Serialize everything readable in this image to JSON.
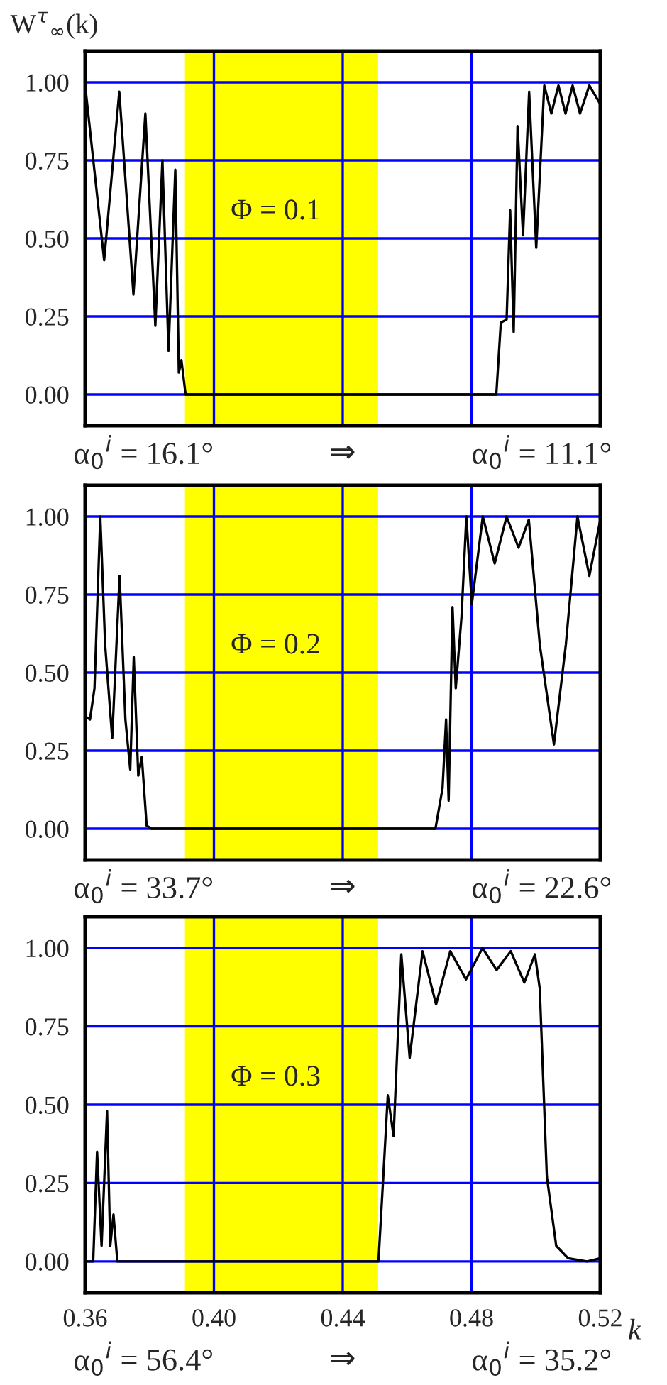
{
  "chart_data": [
    {
      "type": "line",
      "ylabel": "W$^{τ}$$_{∞}$(k)",
      "xlim": [
        0.36,
        0.52
      ],
      "xticks": [
        0.36,
        0.4,
        0.44,
        0.48,
        0.52
      ],
      "ylim": [
        -0.1,
        1.1
      ],
      "yticks": [
        {
          "value": 0,
          "label": "0.00"
        },
        {
          "value": 0.25,
          "label": "0.25"
        },
        {
          "value": 0.5,
          "label": "0.50"
        },
        {
          "value": 0.75,
          "label": "0.75"
        },
        {
          "value": 1,
          "label": "1.00"
        }
      ],
      "grid": true,
      "tick_labels": "y",
      "bands": [
        {
          "axis": "x",
          "from": 0.391,
          "to": 0.451,
          "color": "#ffff00"
        }
      ],
      "annotations": [
        "Φ = 0.1",
        "α$_{0}$$^{i}$ = 16.1°",
        "⇒",
        "α$_{0}$$^{i}$ = 11.1°"
      ],
      "x": [
        0.36,
        0.3659,
        0.3706,
        0.375,
        0.3787,
        0.3818,
        0.384,
        0.3859,
        0.388,
        0.3891,
        0.3899,
        0.3912,
        0.4877,
        0.4891,
        0.4909,
        0.492,
        0.4931,
        0.4943,
        0.496,
        0.4979,
        0.5001,
        0.5026,
        0.5048,
        0.507,
        0.5092,
        0.5114,
        0.5137,
        0.5166,
        0.52
      ],
      "series": [
        {
          "color": "#000000",
          "values": [
            0.99,
            0.43,
            0.97,
            0.32,
            0.9,
            0.22,
            0.75,
            0.14,
            0.72,
            0.07,
            0.11,
            0,
            0,
            0.23,
            0.24,
            0.59,
            0.2,
            0.86,
            0.51,
            0.97,
            0.47,
            0.99,
            0.9,
            0.99,
            0.9,
            0.99,
            0.9,
            0.99,
            0.93
          ]
        }
      ]
    },
    {
      "type": "line",
      "xlim": [
        0.36,
        0.52
      ],
      "xticks": [
        0.36,
        0.4,
        0.44,
        0.48,
        0.52
      ],
      "ylim": [
        -0.1,
        1.1
      ],
      "yticks": [
        {
          "value": 0,
          "label": "0.00"
        },
        {
          "value": 0.25,
          "label": "0.25"
        },
        {
          "value": 0.5,
          "label": "0.50"
        },
        {
          "value": 0.75,
          "label": "0.75"
        },
        {
          "value": 1,
          "label": "1.00"
        }
      ],
      "grid": true,
      "tick_labels": "y",
      "bands": [
        {
          "axis": "x",
          "from": 0.391,
          "to": 0.451,
          "color": "#ffff00"
        }
      ],
      "annotations": [
        "Φ = 0.2",
        "α$_{0}$$^{i}$ = 33.7°",
        "⇒",
        "α$_{0}$$^{i}$ = 22.6°"
      ],
      "x": [
        0.36,
        0.3615,
        0.3629,
        0.3647,
        0.3662,
        0.3684,
        0.3707,
        0.3725,
        0.374,
        0.3751,
        0.3765,
        0.3776,
        0.3791,
        0.3806,
        0.4688,
        0.471,
        0.4721,
        0.4729,
        0.4741,
        0.4751,
        0.4769,
        0.4784,
        0.4801,
        0.4835,
        0.4872,
        0.4909,
        0.4946,
        0.4978,
        0.5012,
        0.5056,
        0.5093,
        0.5129,
        0.5166,
        0.52
      ],
      "series": [
        {
          "color": "#000000",
          "values": [
            0.36,
            0.35,
            0.45,
            1.0,
            0.59,
            0.29,
            0.81,
            0.35,
            0.19,
            0.55,
            0.17,
            0.23,
            0.01,
            0,
            0,
            0.13,
            0.35,
            0.09,
            0.71,
            0.45,
            0.68,
            1.0,
            0.72,
            1.0,
            0.85,
            1.0,
            0.9,
            0.99,
            0.59,
            0.27,
            0.59,
            1.0,
            0.81,
            0.99
          ]
        }
      ]
    },
    {
      "type": "line",
      "xlabel": "k",
      "xlim": [
        0.36,
        0.52
      ],
      "xticks": [
        0.36,
        {
          "value": 0.4,
          "label": "0.40"
        },
        0.44,
        0.48,
        0.52
      ],
      "ylim": [
        -0.1,
        1.1
      ],
      "yticks": [
        {
          "value": 0,
          "label": "0.00"
        },
        {
          "value": 0.25,
          "label": "0.25"
        },
        {
          "value": 0.5,
          "label": "0.50"
        },
        {
          "value": 0.75,
          "label": "0.75"
        },
        {
          "value": 1,
          "label": "1.00"
        }
      ],
      "grid": true,
      "bands": [
        {
          "axis": "x",
          "from": 0.391,
          "to": 0.451,
          "color": "#ffff00"
        }
      ],
      "annotations": [
        "Φ = 0.3",
        "α$_{0}$$^{i}$ = 56.4°",
        "⇒",
        "α$_{0}$$^{i}$ = 35.2°"
      ],
      "x": [
        0.36,
        0.3625,
        0.3637,
        0.3651,
        0.3668,
        0.3678,
        0.3688,
        0.37,
        0.4511,
        0.4526,
        0.454,
        0.4558,
        0.4582,
        0.4608,
        0.4648,
        0.469,
        0.4734,
        0.4783,
        0.4834,
        0.4878,
        0.4922,
        0.4964,
        0.4997,
        0.5012,
        0.5034,
        0.5063,
        0.51,
        0.5159,
        0.52
      ],
      "series": [
        {
          "color": "#000000",
          "values": [
            0,
            0,
            0.35,
            0.05,
            0.48,
            0.05,
            0.15,
            0,
            0,
            0.27,
            0.53,
            0.4,
            0.98,
            0.65,
            0.99,
            0.82,
            0.99,
            0.9,
            1.0,
            0.93,
            0.99,
            0.89,
            0.98,
            0.87,
            0.27,
            0.05,
            0.01,
            0,
            0.01
          ]
        }
      ]
    }
  ]
}
